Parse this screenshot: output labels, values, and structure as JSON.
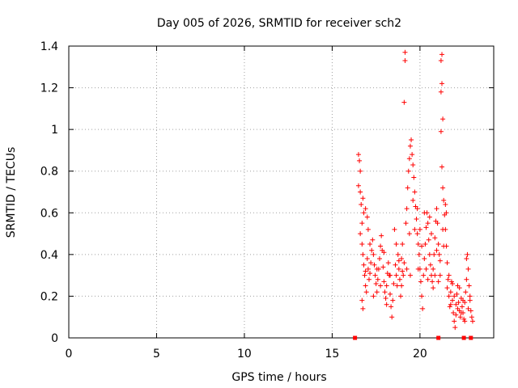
{
  "chart_data": {
    "type": "scatter",
    "title": "Day 005 of 2026, SRMTID for receiver sch2",
    "xlabel": "GPS time / hours",
    "ylabel": "SRMTID / TECUs",
    "xlim": [
      0,
      24.2
    ],
    "ylim": [
      0,
      1.4
    ],
    "xticks": [
      0,
      5,
      10,
      15,
      20
    ],
    "xtick_labels": [
      "0",
      "5",
      "10",
      "15",
      "20"
    ],
    "yticks": [
      0,
      0.2,
      0.4,
      0.6,
      0.8,
      1.0,
      1.2,
      1.4
    ],
    "ytick_labels": [
      "0",
      "0.2",
      "0.4",
      "0.6",
      "0.8",
      "1",
      "1.2",
      "1.4"
    ],
    "grid": true,
    "marker": "+",
    "color": "#ff0000",
    "series": [
      {
        "name": "SRMTID",
        "points": [
          [
            16.5,
            0.88
          ],
          [
            16.55,
            0.85
          ],
          [
            16.6,
            0.8
          ],
          [
            16.5,
            0.73
          ],
          [
            16.6,
            0.7
          ],
          [
            16.65,
            0.64
          ],
          [
            16.75,
            0.67
          ],
          [
            16.8,
            0.6
          ],
          [
            16.7,
            0.55
          ],
          [
            16.6,
            0.5
          ],
          [
            16.7,
            0.45
          ],
          [
            16.75,
            0.4
          ],
          [
            16.8,
            0.35
          ],
          [
            16.85,
            0.3
          ],
          [
            16.9,
            0.25
          ],
          [
            16.95,
            0.22
          ],
          [
            16.7,
            0.18
          ],
          [
            16.75,
            0.14
          ],
          [
            16.9,
            0.32
          ],
          [
            17.0,
            0.38
          ],
          [
            17.05,
            0.33
          ],
          [
            17.1,
            0.28
          ],
          [
            17.15,
            0.31
          ],
          [
            17.2,
            0.36
          ],
          [
            17.25,
            0.42
          ],
          [
            17.3,
            0.47
          ],
          [
            17.35,
            0.4
          ],
          [
            17.4,
            0.35
          ],
          [
            17.45,
            0.3
          ],
          [
            17.5,
            0.26
          ],
          [
            17.55,
            0.22
          ],
          [
            17.6,
            0.28
          ],
          [
            17.65,
            0.33
          ],
          [
            17.7,
            0.38
          ],
          [
            17.75,
            0.44
          ],
          [
            17.8,
            0.49
          ],
          [
            17.85,
            0.42
          ],
          [
            17.9,
            0.34
          ],
          [
            17.95,
            0.27
          ],
          [
            18.0,
            0.22
          ],
          [
            18.05,
            0.19
          ],
          [
            18.1,
            0.25
          ],
          [
            18.15,
            0.31
          ],
          [
            18.2,
            0.36
          ],
          [
            18.25,
            0.3
          ],
          [
            18.3,
            0.21
          ],
          [
            18.35,
            0.15
          ],
          [
            18.4,
            0.1
          ],
          [
            18.45,
            0.18
          ],
          [
            18.5,
            0.26
          ],
          [
            18.55,
            0.52
          ],
          [
            18.6,
            0.35
          ],
          [
            18.65,
            0.3
          ],
          [
            18.7,
            0.25
          ],
          [
            18.75,
            0.4
          ],
          [
            18.8,
            0.33
          ],
          [
            18.85,
            0.28
          ],
          [
            18.9,
            0.2
          ],
          [
            18.95,
            0.38
          ],
          [
            19.0,
            0.45
          ],
          [
            19.05,
            0.3
          ],
          [
            19.1,
            1.13
          ],
          [
            19.15,
            1.33
          ],
          [
            19.15,
            1.37
          ],
          [
            19.2,
            0.55
          ],
          [
            19.25,
            0.62
          ],
          [
            19.3,
            0.72
          ],
          [
            19.35,
            0.8
          ],
          [
            19.4,
            0.86
          ],
          [
            19.45,
            0.92
          ],
          [
            19.5,
            0.95
          ],
          [
            19.55,
            0.88
          ],
          [
            19.6,
            0.83
          ],
          [
            19.65,
            0.77
          ],
          [
            19.7,
            0.7
          ],
          [
            19.75,
            0.63
          ],
          [
            19.8,
            0.57
          ],
          [
            19.85,
            0.5
          ],
          [
            19.9,
            0.45
          ],
          [
            19.95,
            0.4
          ],
          [
            20.0,
            0.33
          ],
          [
            20.05,
            0.27
          ],
          [
            20.1,
            0.2
          ],
          [
            20.15,
            0.14
          ],
          [
            20.2,
            0.3
          ],
          [
            20.25,
            0.38
          ],
          [
            20.3,
            0.45
          ],
          [
            20.35,
            0.53
          ],
          [
            20.4,
            0.6
          ],
          [
            20.45,
            0.55
          ],
          [
            20.5,
            0.47
          ],
          [
            20.55,
            0.4
          ],
          [
            20.6,
            0.35
          ],
          [
            20.65,
            0.3
          ],
          [
            20.7,
            0.27
          ],
          [
            20.75,
            0.33
          ],
          [
            20.8,
            0.4
          ],
          [
            20.85,
            0.48
          ],
          [
            20.9,
            0.56
          ],
          [
            20.95,
            0.62
          ],
          [
            21.0,
            0.55
          ],
          [
            21.05,
            0.45
          ],
          [
            21.1,
            0.4
          ],
          [
            21.15,
            0.37
          ],
          [
            21.2,
            1.33
          ],
          [
            21.25,
            1.36
          ],
          [
            21.2,
            1.18
          ],
          [
            21.25,
            1.22
          ],
          [
            21.2,
            0.99
          ],
          [
            21.3,
            1.05
          ],
          [
            21.25,
            0.82
          ],
          [
            21.3,
            0.72
          ],
          [
            21.35,
            0.66
          ],
          [
            21.4,
            0.59
          ],
          [
            21.45,
            0.52
          ],
          [
            21.5,
            0.44
          ],
          [
            21.55,
            0.36
          ],
          [
            21.6,
            0.28
          ],
          [
            21.65,
            0.2
          ],
          [
            21.7,
            0.15
          ],
          [
            21.75,
            0.22
          ],
          [
            21.8,
            0.27
          ],
          [
            21.85,
            0.18
          ],
          [
            21.9,
            0.12
          ],
          [
            21.95,
            0.08
          ],
          [
            22.0,
            0.05
          ],
          [
            22.05,
            0.16
          ],
          [
            22.1,
            0.21
          ],
          [
            22.15,
            0.25
          ],
          [
            22.2,
            0.17
          ],
          [
            22.25,
            0.13
          ],
          [
            22.3,
            0.1
          ],
          [
            22.35,
            0.19
          ],
          [
            22.4,
            0.15
          ],
          [
            22.45,
            0.12
          ],
          [
            22.5,
            0.09
          ],
          [
            22.55,
            0.17
          ],
          [
            22.6,
            0.22
          ],
          [
            22.65,
            0.38
          ],
          [
            22.7,
            0.4
          ],
          [
            22.75,
            0.33
          ],
          [
            22.8,
            0.25
          ],
          [
            22.85,
            0.18
          ],
          [
            22.9,
            0.13
          ],
          [
            22.95,
            0.1
          ],
          [
            23.0,
            0.08
          ],
          [
            16.9,
            0.62
          ],
          [
            17.0,
            0.58
          ],
          [
            17.05,
            0.52
          ],
          [
            17.15,
            0.45
          ],
          [
            17.35,
            0.2
          ],
          [
            17.55,
            0.33
          ],
          [
            17.75,
            0.25
          ],
          [
            17.95,
            0.41
          ],
          [
            18.1,
            0.16
          ],
          [
            18.3,
            0.3
          ],
          [
            18.65,
            0.45
          ],
          [
            18.8,
            0.37
          ],
          [
            18.95,
            0.25
          ],
          [
            19.0,
            0.32
          ],
          [
            19.1,
            0.36
          ],
          [
            19.25,
            0.33
          ],
          [
            19.4,
            0.5
          ],
          [
            19.45,
            0.3
          ],
          [
            19.6,
            0.66
          ],
          [
            19.7,
            0.52
          ],
          [
            19.85,
            0.62
          ],
          [
            19.9,
            0.33
          ],
          [
            20.0,
            0.52
          ],
          [
            20.1,
            0.44
          ],
          [
            20.25,
            0.6
          ],
          [
            20.35,
            0.33
          ],
          [
            20.45,
            0.28
          ],
          [
            20.55,
            0.58
          ],
          [
            20.65,
            0.5
          ],
          [
            20.75,
            0.24
          ],
          [
            20.85,
            0.3
          ],
          [
            20.95,
            0.42
          ],
          [
            21.05,
            0.27
          ],
          [
            21.15,
            0.3
          ],
          [
            21.3,
            0.52
          ],
          [
            21.35,
            0.44
          ],
          [
            21.45,
            0.64
          ],
          [
            21.5,
            0.6
          ],
          [
            21.55,
            0.24
          ],
          [
            21.65,
            0.3
          ],
          [
            21.75,
            0.16
          ],
          [
            21.85,
            0.26
          ],
          [
            21.95,
            0.2
          ],
          [
            22.05,
            0.11
          ],
          [
            22.15,
            0.14
          ],
          [
            22.25,
            0.24
          ],
          [
            22.35,
            0.12
          ],
          [
            22.45,
            0.18
          ],
          [
            22.55,
            0.08
          ],
          [
            22.65,
            0.28
          ],
          [
            22.75,
            0.14
          ],
          [
            22.85,
            0.2
          ]
        ]
      }
    ],
    "zero_markers": [
      16.3,
      21.05,
      22.5,
      22.9
    ]
  }
}
